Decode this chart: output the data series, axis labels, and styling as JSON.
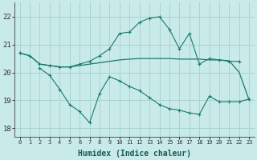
{
  "x": [
    0,
    1,
    2,
    3,
    4,
    5,
    6,
    7,
    8,
    9,
    10,
    11,
    12,
    13,
    14,
    15,
    16,
    17,
    18,
    19,
    20,
    21,
    22,
    23
  ],
  "line_top": [
    20.7,
    20.6,
    20.3,
    20.25,
    20.2,
    20.2,
    20.3,
    20.4,
    20.6,
    20.85,
    21.4,
    21.45,
    21.8,
    21.95,
    22.0,
    21.55,
    20.85,
    21.4,
    20.3,
    20.5,
    20.45,
    20.4,
    20.4,
    null
  ],
  "line_mid": [
    20.7,
    20.6,
    20.3,
    20.25,
    20.2,
    20.2,
    20.25,
    20.3,
    20.35,
    20.4,
    20.45,
    20.48,
    20.5,
    20.5,
    20.5,
    20.5,
    20.48,
    20.48,
    20.48,
    20.45,
    20.45,
    20.42,
    20.0,
    19.0
  ],
  "line_bot": [
    20.7,
    null,
    20.15,
    19.9,
    19.4,
    18.85,
    18.6,
    18.2,
    19.25,
    19.85,
    19.7,
    19.5,
    19.35,
    19.1,
    18.85,
    18.7,
    18.65,
    18.55,
    18.5,
    19.15,
    18.95,
    18.95,
    18.95,
    19.05
  ],
  "line_color": "#1a7a6e",
  "bg_color": "#c8eae8",
  "grid_color": "#aad4d0",
  "ylabel_ticks": [
    18,
    19,
    20,
    21,
    22
  ],
  "xlabel": "Humidex (Indice chaleur)",
  "ylim": [
    17.7,
    22.5
  ],
  "xlim": [
    -0.5,
    23.5
  ]
}
